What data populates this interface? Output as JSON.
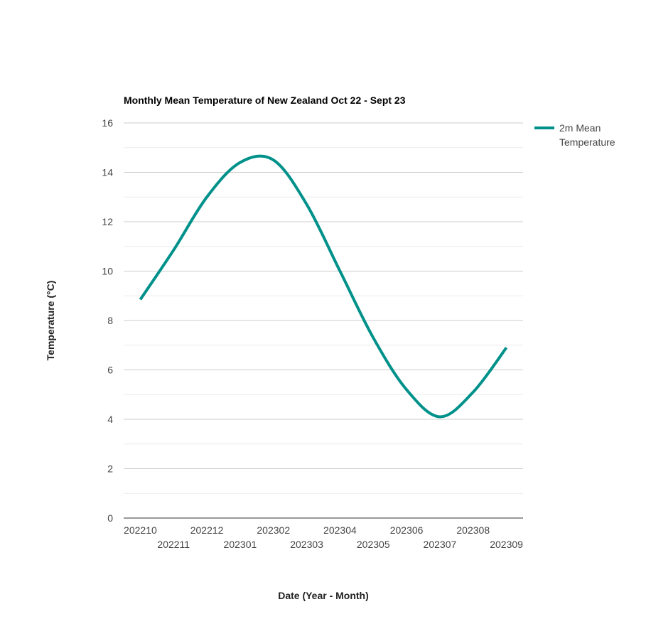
{
  "chart_data": {
    "type": "line",
    "title": "Monthly Mean Temperature of New Zealand Oct 22 - Sept 23",
    "xlabel": "Date (Year - Month)",
    "ylabel": "Temperature (°C)",
    "ylim": [
      0,
      16
    ],
    "yticks": [
      "0",
      "2",
      "4",
      "6",
      "8",
      "10",
      "12",
      "14",
      "16"
    ],
    "grid": true,
    "legend_position": "right",
    "categories": [
      "202210",
      "202211",
      "202212",
      "202301",
      "202302",
      "202303",
      "202304",
      "202305",
      "202306",
      "202307",
      "202308",
      "202309"
    ],
    "series": [
      {
        "name": "2m Mean Temperature",
        "color": "#00918a",
        "values": [
          8.85,
          10.85,
          13.0,
          14.4,
          14.5,
          12.7,
          10.0,
          7.3,
          5.2,
          4.1,
          5.1,
          6.9
        ]
      }
    ]
  }
}
